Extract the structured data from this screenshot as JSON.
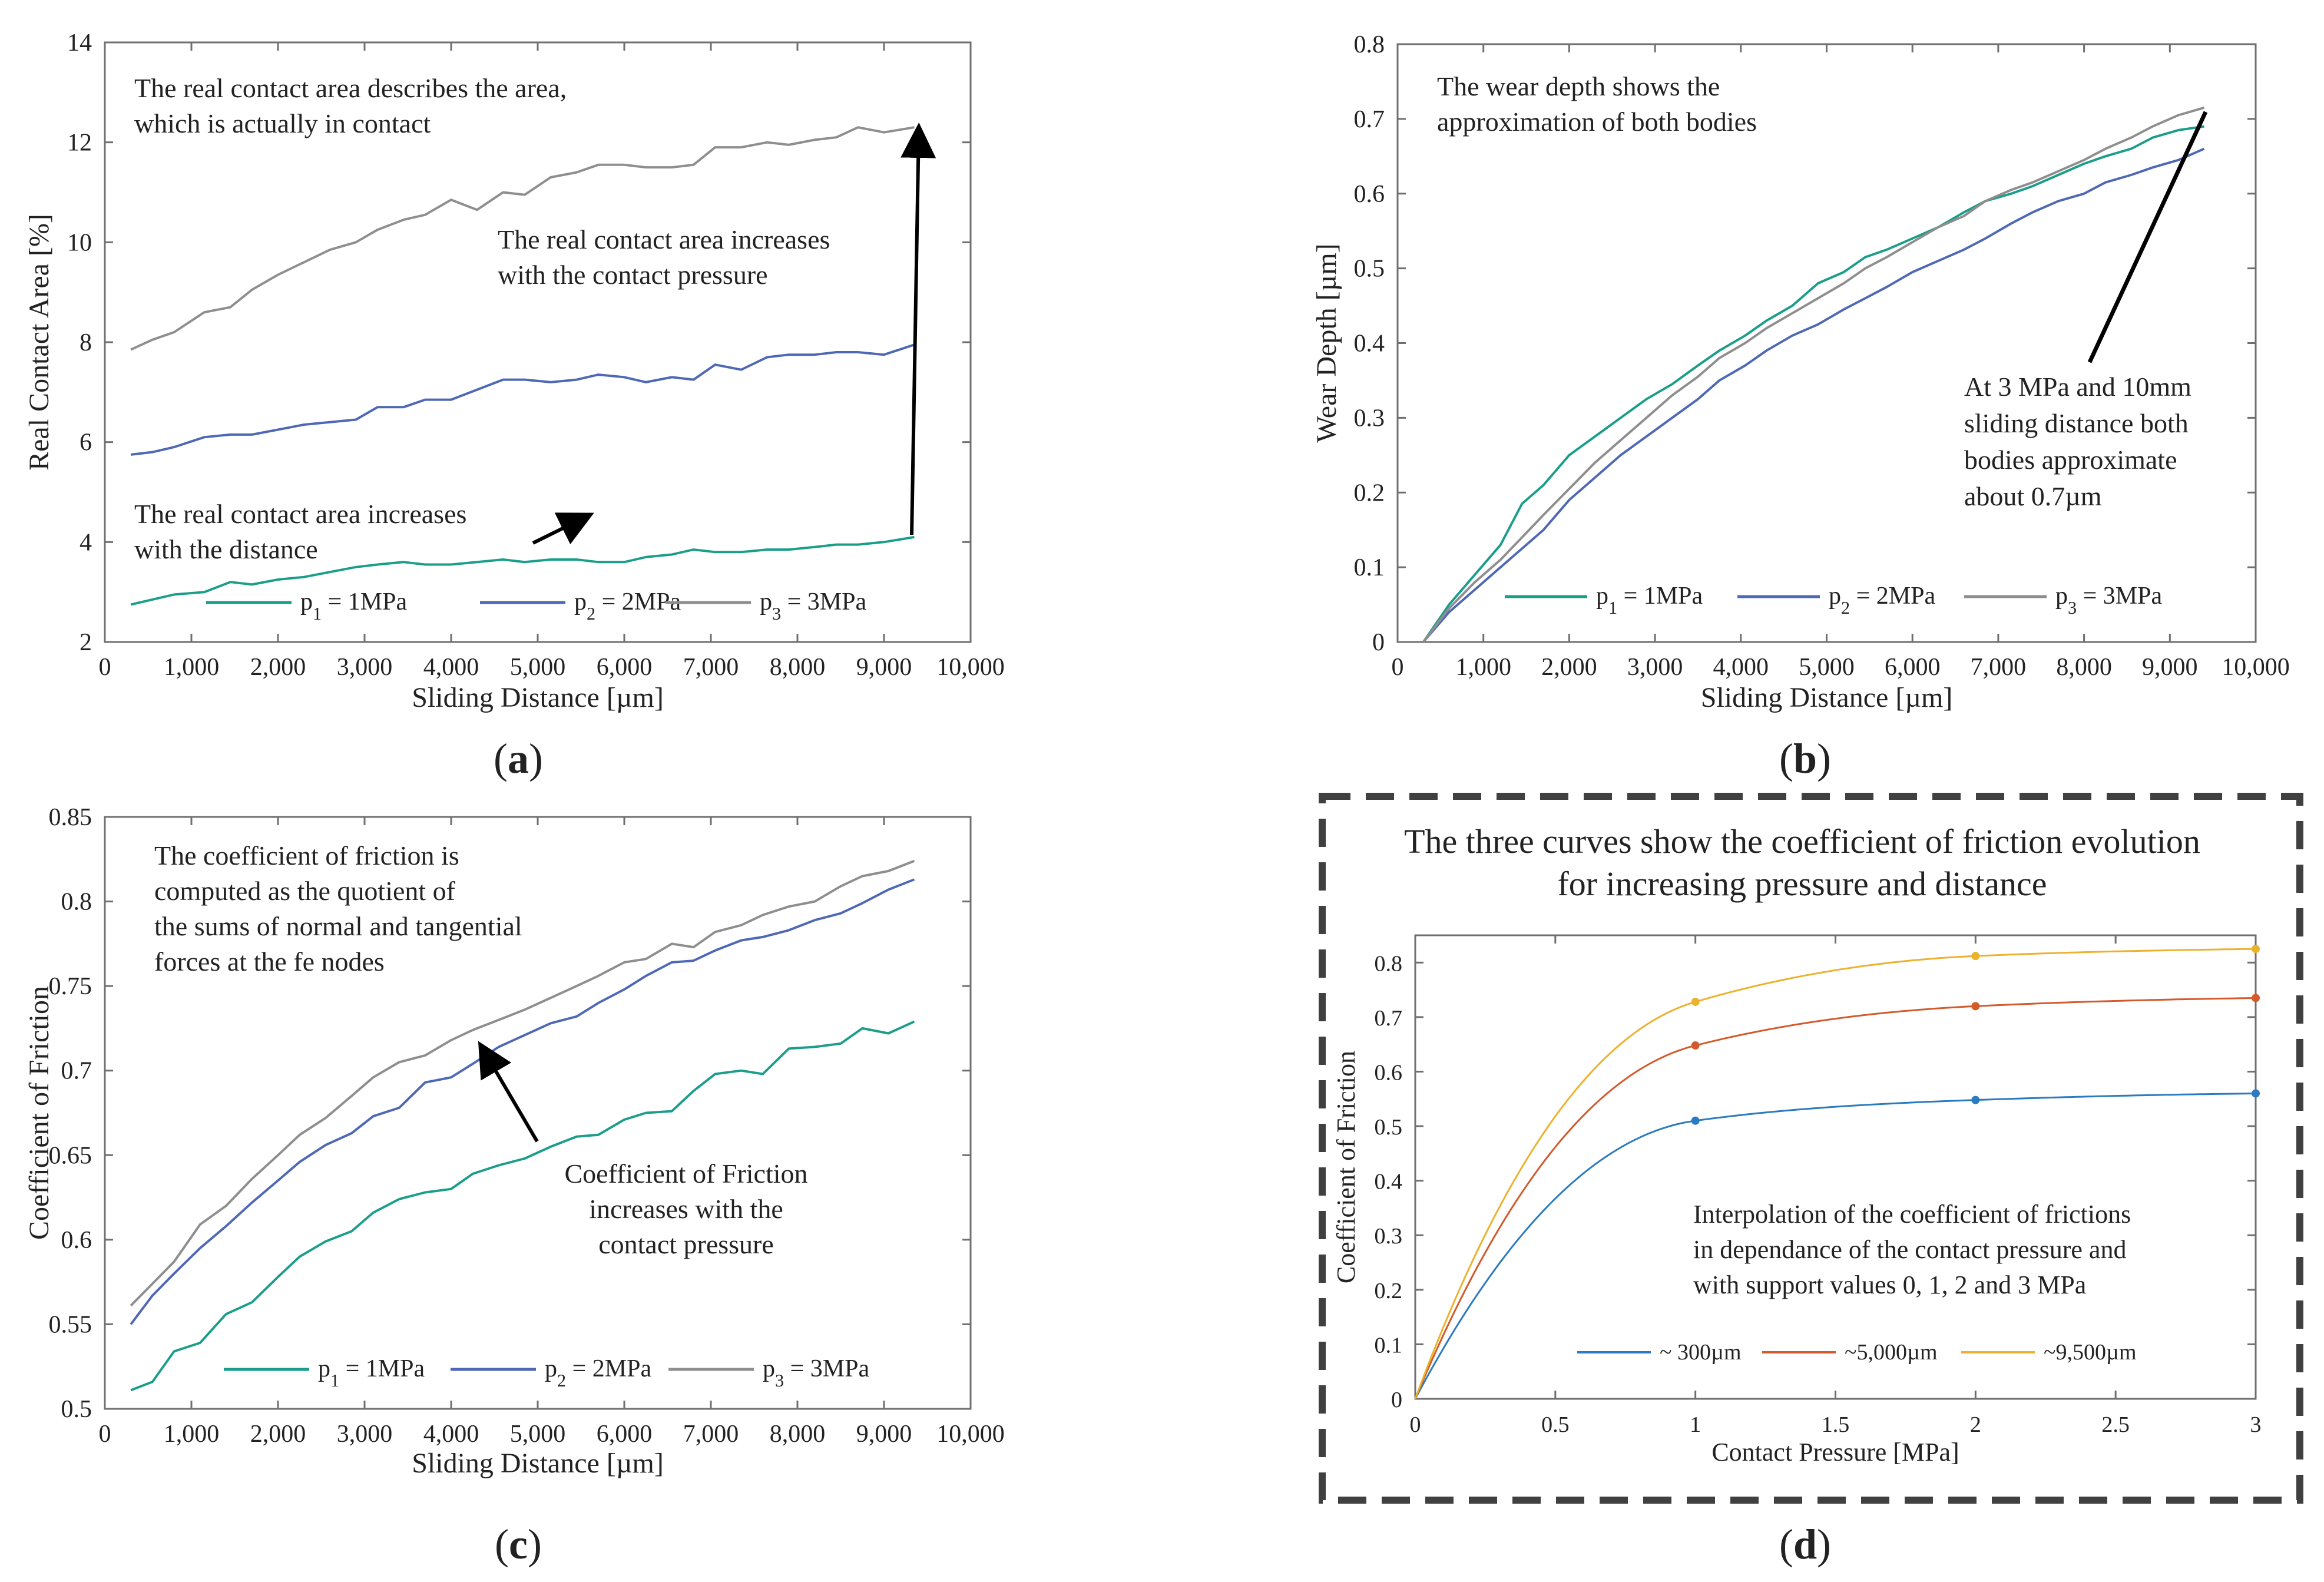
{
  "panels": [
    {
      "label": "(a)",
      "label_bold": "a"
    },
    {
      "label": "(b)",
      "label_bold": "b"
    },
    {
      "label": "(c)",
      "label_bold": "c"
    },
    {
      "label": "(d)",
      "label_bold": "d"
    }
  ],
  "chart_data": [
    {
      "id": "a",
      "type": "line",
      "xlabel": "Sliding Distance [µm]",
      "ylabel": "Real Contact Area [%]",
      "xlim": [
        0,
        10000
      ],
      "ylim": [
        2,
        14
      ],
      "xticks": [
        0,
        1000,
        2000,
        3000,
        4000,
        5000,
        6000,
        7000,
        8000,
        9000,
        10000
      ],
      "xtick_labels": [
        "0",
        "1,000",
        "2,000",
        "3,000",
        "4,000",
        "5,000",
        "6,000",
        "7,000",
        "8,000",
        "9,000",
        "10,000"
      ],
      "yticks": [
        2,
        4,
        6,
        8,
        10,
        12,
        14
      ],
      "ytick_labels": [
        "2",
        "4",
        "6",
        "8",
        "10",
        "12",
        "14"
      ],
      "x": [
        300,
        550,
        800,
        1150,
        1450,
        1700,
        2000,
        2300,
        2600,
        2900,
        3150,
        3450,
        3700,
        4000,
        4300,
        4600,
        4850,
        5150,
        5450,
        5700,
        6000,
        6250,
        6550,
        6800,
        7050,
        7350,
        7650,
        7900,
        8200,
        8450,
        8700,
        9000,
        9350
      ],
      "series": [
        {
          "name": "p1 = 1MPa",
          "color": "#1a9e8a",
          "values": [
            2.75,
            2.85,
            2.95,
            3.0,
            3.2,
            3.15,
            3.25,
            3.3,
            3.4,
            3.5,
            3.55,
            3.6,
            3.55,
            3.55,
            3.6,
            3.65,
            3.6,
            3.65,
            3.65,
            3.6,
            3.6,
            3.7,
            3.75,
            3.85,
            3.8,
            3.8,
            3.85,
            3.85,
            3.9,
            3.95,
            3.95,
            4.0,
            4.1
          ]
        },
        {
          "name": "p2 = 2MPa",
          "color": "#4e68b5",
          "values": [
            5.75,
            5.8,
            5.9,
            6.1,
            6.15,
            6.15,
            6.25,
            6.35,
            6.4,
            6.45,
            6.7,
            6.7,
            6.85,
            6.85,
            7.05,
            7.25,
            7.25,
            7.2,
            7.25,
            7.35,
            7.3,
            7.2,
            7.3,
            7.25,
            7.55,
            7.45,
            7.7,
            7.75,
            7.75,
            7.8,
            7.8,
            7.75,
            7.95
          ]
        },
        {
          "name": "p3 = 3MPa",
          "color": "#8e8e8e",
          "values": [
            7.85,
            8.05,
            8.2,
            8.6,
            8.7,
            9.05,
            9.35,
            9.6,
            9.85,
            10.0,
            10.25,
            10.45,
            10.55,
            10.85,
            10.65,
            11.0,
            10.95,
            11.3,
            11.4,
            11.55,
            11.55,
            11.5,
            11.5,
            11.55,
            11.9,
            11.9,
            12.0,
            11.95,
            12.05,
            12.1,
            12.3,
            12.2,
            12.3
          ]
        }
      ],
      "legend": [
        {
          "base": "p",
          "sub": "1",
          "rest": " = 1MPa"
        },
        {
          "base": "p",
          "sub": "2",
          "rest": " = 2MPa"
        },
        {
          "base": "p",
          "sub": "3",
          "rest": " = 3MPa"
        }
      ],
      "legend_position": "bottom",
      "annotations": [
        {
          "lines": [
            "The real contact area describes the area,",
            "which is actually in contact"
          ]
        },
        {
          "lines": [
            "The real contact area increases",
            "with the contact pressure"
          ]
        },
        {
          "lines": [
            "The real contact area increases",
            "with the distance"
          ]
        }
      ]
    },
    {
      "id": "b",
      "type": "line",
      "xlabel": "Sliding Distance [µm]",
      "ylabel": "Wear Depth  [µm]",
      "xlim": [
        0,
        10000
      ],
      "ylim": [
        0,
        0.8
      ],
      "xticks": [
        0,
        1000,
        2000,
        3000,
        4000,
        5000,
        6000,
        7000,
        8000,
        9000,
        10000
      ],
      "xtick_labels": [
        "0",
        "1,000",
        "2,000",
        "3,000",
        "4,000",
        "5,000",
        "6,000",
        "7,000",
        "8,000",
        "9,000",
        "10,000"
      ],
      "yticks": [
        0,
        0.1,
        0.2,
        0.3,
        0.4,
        0.5,
        0.6,
        0.7,
        0.8
      ],
      "ytick_labels": [
        "0",
        "0.1",
        "0.2",
        "0.3",
        "0.4",
        "0.5",
        "0.6",
        "0.7",
        "0.8"
      ],
      "x": [
        300,
        600,
        900,
        1200,
        1450,
        1700,
        2000,
        2300,
        2600,
        2900,
        3200,
        3500,
        3750,
        4050,
        4300,
        4600,
        4900,
        5200,
        5450,
        5700,
        6000,
        6300,
        6600,
        6850,
        7150,
        7400,
        7700,
        8000,
        8250,
        8550,
        8800,
        9100,
        9400
      ],
      "series": [
        {
          "name": "p1 = 1MPa",
          "color": "#1a9e8a",
          "values": [
            0.0,
            0.05,
            0.09,
            0.13,
            0.185,
            0.21,
            0.25,
            0.275,
            0.3,
            0.325,
            0.345,
            0.37,
            0.39,
            0.41,
            0.43,
            0.45,
            0.48,
            0.495,
            0.515,
            0.525,
            0.54,
            0.555,
            0.575,
            0.59,
            0.6,
            0.61,
            0.625,
            0.64,
            0.65,
            0.66,
            0.675,
            0.685,
            0.69
          ]
        },
        {
          "name": "p2 = 2MPa",
          "color": "#4e68b5",
          "values": [
            0.0,
            0.04,
            0.07,
            0.1,
            0.125,
            0.15,
            0.19,
            0.22,
            0.25,
            0.275,
            0.3,
            0.325,
            0.35,
            0.37,
            0.39,
            0.41,
            0.425,
            0.445,
            0.46,
            0.475,
            0.495,
            0.51,
            0.525,
            0.54,
            0.56,
            0.575,
            0.59,
            0.6,
            0.615,
            0.625,
            0.635,
            0.645,
            0.66
          ]
        },
        {
          "name": "p3 = 3MPa",
          "color": "#8e8e8e",
          "values": [
            0.0,
            0.045,
            0.08,
            0.11,
            0.14,
            0.17,
            0.205,
            0.24,
            0.27,
            0.3,
            0.33,
            0.355,
            0.38,
            0.4,
            0.42,
            0.44,
            0.46,
            0.48,
            0.5,
            0.515,
            0.535,
            0.555,
            0.57,
            0.59,
            0.605,
            0.615,
            0.63,
            0.645,
            0.66,
            0.675,
            0.69,
            0.705,
            0.715
          ]
        }
      ],
      "legend": [
        {
          "base": "p",
          "sub": "1",
          "rest": " = 1MPa"
        },
        {
          "base": "p",
          "sub": "2",
          "rest": " = 2MPa"
        },
        {
          "base": "p",
          "sub": "3",
          "rest": " = 3MPa"
        }
      ],
      "legend_position": "bottom",
      "annotations": [
        {
          "lines": [
            "The wear depth shows the",
            "approximation of both bodies"
          ]
        },
        {
          "lines": [
            "At 3 MPa and 10mm",
            "sliding distance both",
            "bodies approximate",
            "about 0.7µm"
          ]
        }
      ]
    },
    {
      "id": "c",
      "type": "line",
      "xlabel": "Sliding Distance [µm]",
      "ylabel": "Coefficient of Friction",
      "xlim": [
        0,
        10000
      ],
      "ylim": [
        0.5,
        0.85
      ],
      "xticks": [
        0,
        1000,
        2000,
        3000,
        4000,
        5000,
        6000,
        7000,
        8000,
        9000,
        10000
      ],
      "xtick_labels": [
        "0",
        "1,000",
        "2,000",
        "3,000",
        "4,000",
        "5,000",
        "6,000",
        "7,000",
        "8,000",
        "9,000",
        "10,000"
      ],
      "yticks": [
        0.5,
        0.55,
        0.6,
        0.65,
        0.7,
        0.75,
        0.8,
        0.85
      ],
      "ytick_labels": [
        "0.5",
        "0.55",
        "0.6",
        "0.65",
        "0.7",
        "0.75",
        "0.8",
        "0.85"
      ],
      "x": [
        300,
        550,
        800,
        1100,
        1400,
        1700,
        2000,
        2250,
        2550,
        2850,
        3100,
        3400,
        3700,
        4000,
        4250,
        4550,
        4850,
        5150,
        5450,
        5700,
        6000,
        6250,
        6550,
        6800,
        7050,
        7350,
        7600,
        7900,
        8200,
        8500,
        8750,
        9050,
        9350
      ],
      "series": [
        {
          "name": "p1 = 1MPa",
          "color": "#1a9e8a",
          "values": [
            0.511,
            0.516,
            0.534,
            0.539,
            0.556,
            0.563,
            0.578,
            0.59,
            0.599,
            0.605,
            0.616,
            0.624,
            0.628,
            0.63,
            0.639,
            0.644,
            0.648,
            0.655,
            0.661,
            0.662,
            0.671,
            0.675,
            0.676,
            0.688,
            0.698,
            0.7,
            0.698,
            0.713,
            0.714,
            0.716,
            0.725,
            0.722,
            0.729
          ]
        },
        {
          "name": "p2 = 2MPa",
          "color": "#4e68b5",
          "values": [
            0.55,
            0.567,
            0.58,
            0.595,
            0.608,
            0.622,
            0.635,
            0.646,
            0.656,
            0.663,
            0.673,
            0.678,
            0.693,
            0.696,
            0.704,
            0.714,
            0.721,
            0.728,
            0.732,
            0.74,
            0.748,
            0.756,
            0.764,
            0.765,
            0.771,
            0.777,
            0.779,
            0.783,
            0.789,
            0.793,
            0.799,
            0.807,
            0.813
          ]
        },
        {
          "name": "p3 = 3MPa",
          "color": "#8e8e8e",
          "values": [
            0.561,
            0.574,
            0.587,
            0.609,
            0.62,
            0.636,
            0.65,
            0.662,
            0.672,
            0.685,
            0.696,
            0.705,
            0.709,
            0.718,
            0.724,
            0.73,
            0.736,
            0.743,
            0.75,
            0.756,
            0.764,
            0.766,
            0.775,
            0.773,
            0.782,
            0.786,
            0.792,
            0.797,
            0.8,
            0.809,
            0.815,
            0.818,
            0.824
          ]
        }
      ],
      "legend": [
        {
          "base": "p",
          "sub": "1",
          "rest": " = 1MPa"
        },
        {
          "base": "p",
          "sub": "2",
          "rest": " = 2MPa"
        },
        {
          "base": "p",
          "sub": "3",
          "rest": " = 3MPa"
        }
      ],
      "legend_position": "bottom",
      "annotations": [
        {
          "lines": [
            "The coefficient of friction is",
            "computed as the quotient of",
            "the sums of normal and tangential",
            "forces at the fe nodes"
          ]
        },
        {
          "lines": [
            "Coefficient of Friction",
            "increases with the",
            "contact pressure"
          ]
        }
      ]
    },
    {
      "id": "d",
      "type": "line",
      "title": [
        "The three curves show the coefficient of friction evolution",
        "for increasing pressure and distance"
      ],
      "xlabel": "Contact Pressure [MPa]",
      "ylabel": "Coefficient of Friction",
      "xlim": [
        0,
        3
      ],
      "ylim": [
        0,
        0.85
      ],
      "xticks": [
        0,
        0.5,
        1,
        1.5,
        2,
        2.5,
        3
      ],
      "xtick_labels": [
        "0",
        "0.5",
        "1",
        "1.5",
        "2",
        "2.5",
        "3"
      ],
      "yticks": [
        0,
        0.1,
        0.2,
        0.3,
        0.4,
        0.5,
        0.6,
        0.7,
        0.8
      ],
      "ytick_labels": [
        "0",
        "0.1",
        "0.2",
        "0.3",
        "0.4",
        "0.5",
        "0.6",
        "0.7",
        "0.8"
      ],
      "support_x": [
        0,
        1,
        2,
        3
      ],
      "series": [
        {
          "name": "~ 300µm",
          "color": "#2a7bbf",
          "support_values": [
            0,
            0.51,
            0.548,
            0.56
          ]
        },
        {
          "name": "~5,000µm",
          "color": "#d35a2b",
          "support_values": [
            0,
            0.648,
            0.72,
            0.735
          ]
        },
        {
          "name": "~9,500µm",
          "color": "#ecb22e",
          "support_values": [
            0,
            0.728,
            0.812,
            0.825
          ]
        }
      ],
      "legend": [
        {
          "text": "~ 300µm"
        },
        {
          "text": "~5,000µm"
        },
        {
          "text": "~9,500µm"
        }
      ],
      "legend_position": "bottom-right",
      "annotations": [
        {
          "lines": [
            "Interpolation of the coefficient of frictions",
            "in dependance of the contact pressure and",
            "with support values 0, 1, 2 and 3 MPa"
          ]
        }
      ]
    }
  ]
}
